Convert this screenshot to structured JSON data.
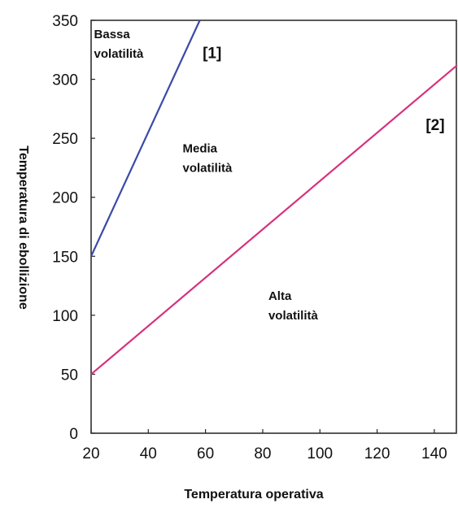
{
  "chart_data": {
    "type": "line",
    "title": "",
    "xlabel": "Temperatura operativa",
    "ylabel": "Temperatura di ebollizione",
    "xlim": [
      20,
      148
    ],
    "ylim": [
      0,
      350
    ],
    "x_ticks": [
      20,
      40,
      60,
      80,
      100,
      120,
      140
    ],
    "y_ticks": [
      0,
      50,
      100,
      150,
      200,
      250,
      300,
      350
    ],
    "grid": false,
    "legend": "none",
    "series": [
      {
        "name": "[1]",
        "color": "#3a4aa8",
        "x": [
          20,
          58
        ],
        "y": [
          150,
          350
        ]
      },
      {
        "name": "[2]",
        "color": "#d6327f",
        "x": [
          20,
          148
        ],
        "y": [
          50,
          312
        ]
      }
    ],
    "annotations": [
      {
        "lines": [
          "Bassa",
          "volatilità"
        ],
        "x": 21,
        "y": 335,
        "style": "normal"
      },
      {
        "lines": [
          "[1]"
        ],
        "x": 59,
        "y": 318,
        "style": "big"
      },
      {
        "lines": [
          "Media",
          "volatilità"
        ],
        "x": 52,
        "y": 238,
        "style": "normal"
      },
      {
        "lines": [
          "[2]"
        ],
        "x": 137,
        "y": 257,
        "style": "big"
      },
      {
        "lines": [
          "Alta",
          "volatilità"
        ],
        "x": 82,
        "y": 113,
        "style": "normal"
      }
    ]
  }
}
